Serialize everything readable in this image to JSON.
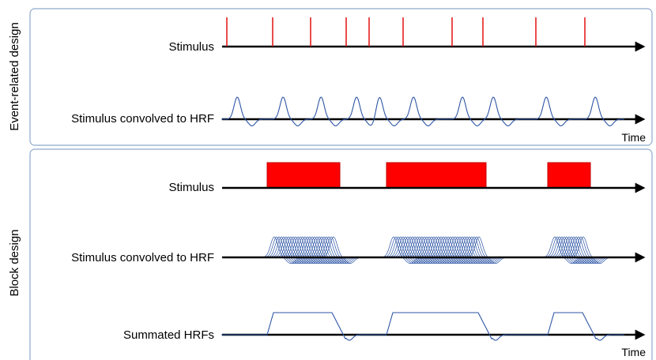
{
  "panels": {
    "event": {
      "label": "Event-related design",
      "rows": {
        "stimulus_label": "Stimulus",
        "convolved_label": "Stimulus convolved to HRF"
      },
      "time_label": "Time"
    },
    "block": {
      "label": "Block design",
      "rows": {
        "stimulus_label": "Stimulus",
        "convolved_label": "Stimulus convolved to HRF",
        "summated_label": "Summated HRFs"
      },
      "time_label": "Time"
    }
  },
  "colors": {
    "stimulus": "#ff0000",
    "hrf": "#2e56a6",
    "panel_border": "#8eaacb",
    "axis": "#000000"
  }
}
